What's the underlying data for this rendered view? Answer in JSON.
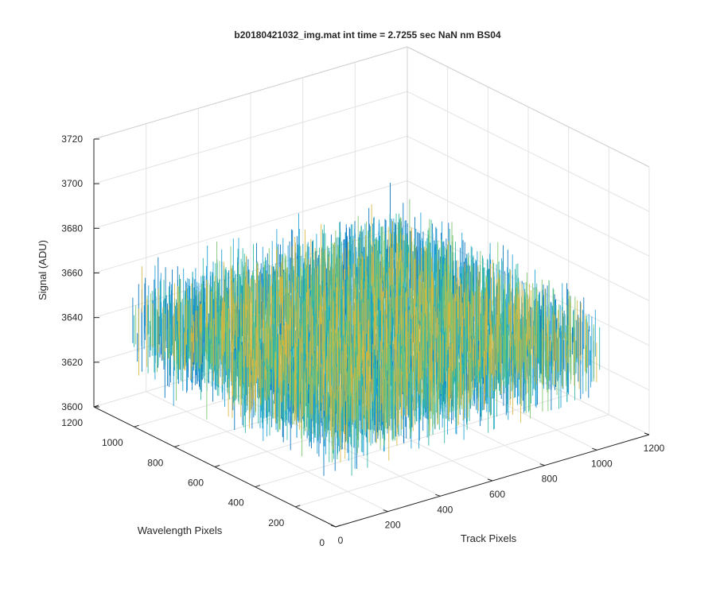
{
  "chart_data": {
    "type": "surface",
    "title": "b20180421032_img.mat int time = 2.7255 sec  NaN nm BS04",
    "xlabel": "Track Pixels",
    "ylabel": "Wavelength Pixels",
    "zlabel": "Signal (ADU)",
    "x_ticks": [
      "0",
      "200",
      "400",
      "600",
      "800",
      "1000",
      "1200"
    ],
    "y_ticks": [
      "0",
      "200",
      "400",
      "600",
      "800",
      "1000",
      "1200"
    ],
    "z_ticks": [
      "3600",
      "3620",
      "3640",
      "3660",
      "3680",
      "3700",
      "3720"
    ],
    "xlim": [
      0,
      1200
    ],
    "ylim": [
      0,
      1200
    ],
    "zlim": [
      3600,
      3720
    ],
    "data_extent": {
      "x": [
        0,
        1024
      ],
      "y": [
        0,
        1024
      ]
    },
    "signal_mean": 3645,
    "signal_min": 3612,
    "signal_max": 3705,
    "grid": true,
    "colormap": [
      "#0072BD",
      "#1A9FD6",
      "#2BB5A6",
      "#7BC46E",
      "#D8B63D"
    ]
  }
}
